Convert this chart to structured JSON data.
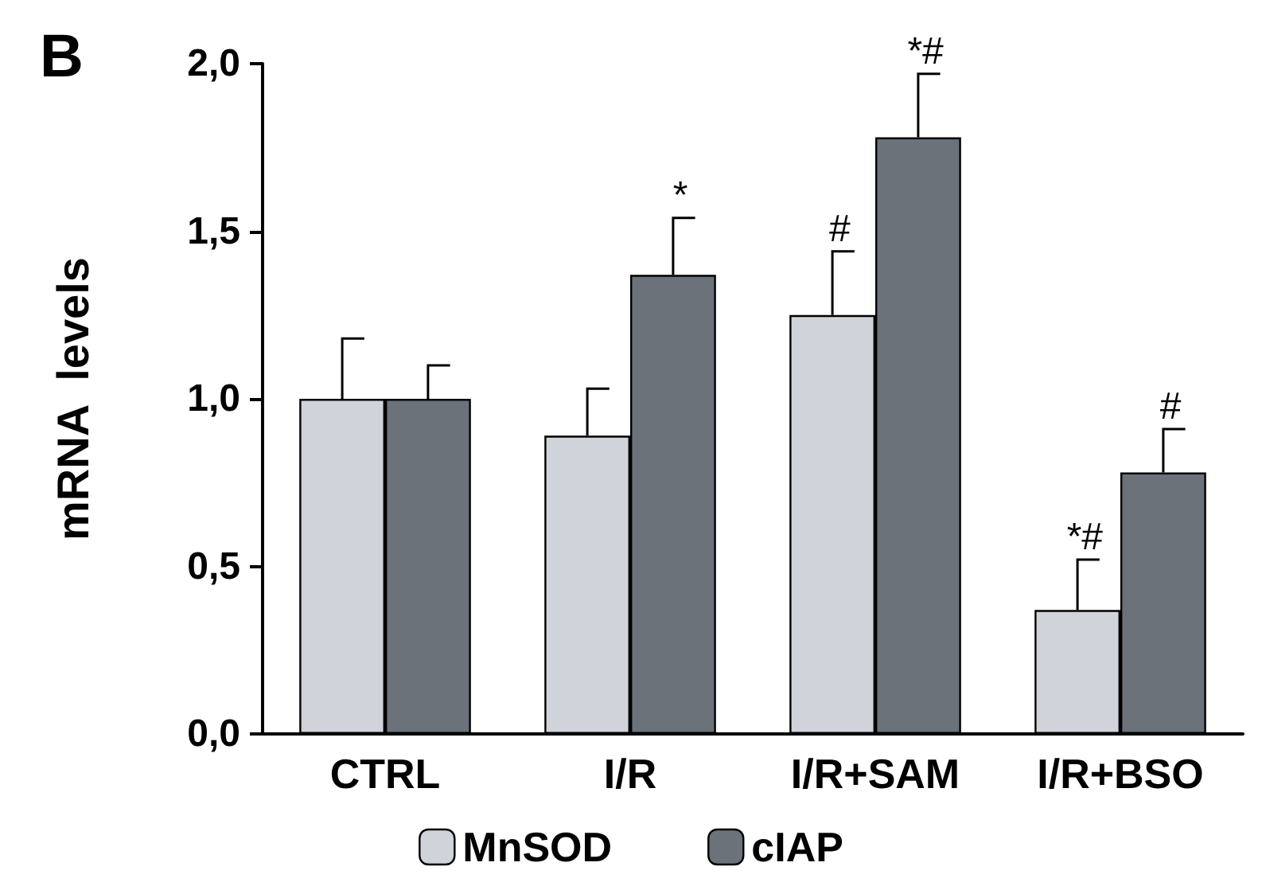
{
  "chart_data": {
    "type": "bar",
    "title": "B",
    "ylabel": "mRNA  levels",
    "categories": [
      "CTRL",
      "I/R",
      "I/R+SAM",
      "I/R+BSO"
    ],
    "series": [
      {
        "name": "MnSOD",
        "color": "#d1d3da",
        "values": [
          1.0,
          0.89,
          1.25,
          0.37
        ],
        "errors": [
          [
            1.0,
            1.18
          ],
          [
            0.89,
            1.03
          ],
          [
            1.25,
            1.44
          ],
          [
            0.37,
            0.52
          ]
        ]
      },
      {
        "name": "cIAP",
        "color": "#6c727a",
        "values": [
          1.0,
          1.37,
          1.78,
          0.78
        ],
        "errors": [
          [
            1.0,
            1.1
          ],
          [
            1.37,
            1.54
          ],
          [
            1.78,
            1.97
          ],
          [
            0.78,
            0.91
          ]
        ]
      }
    ],
    "ylim": [
      0,
      2
    ],
    "yticks": [
      {
        "value": 0,
        "label": "0,0"
      },
      {
        "value": 0.5,
        "label": "0,5"
      },
      {
        "value": 1,
        "label": "1,0"
      },
      {
        "value": 1.5,
        "label": "1,5"
      },
      {
        "value": 2,
        "label": "2,0"
      }
    ],
    "annotations": [
      {
        "text": "*",
        "x": "I/R",
        "y": 1.37
      },
      {
        "text": "#",
        "x": "I/R+SAM",
        "y": 1.25
      },
      {
        "text": "*#",
        "x": "I/R+SAM",
        "y": 1.78
      },
      {
        "text": "*#",
        "x": "I/R+BSO",
        "y": 0.37
      },
      {
        "text": "#",
        "x": "I/R+BSO",
        "y": 0.78
      }
    ],
    "grid": false,
    "legend": "bottom"
  }
}
